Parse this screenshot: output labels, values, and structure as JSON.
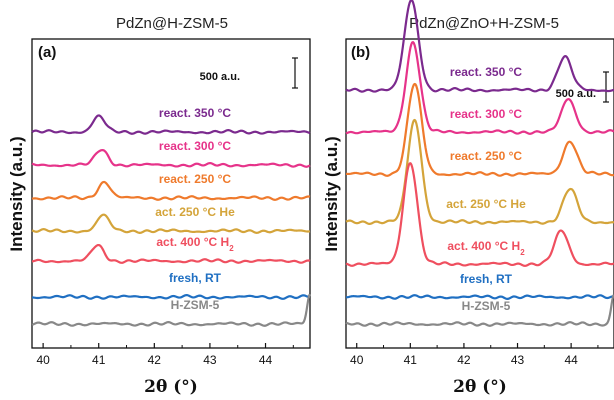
{
  "chart_data": [
    {
      "type": "line",
      "panel_label": "(a)",
      "title": "PdZn@H-ZSM-5",
      "xlabel": "2θ (°)",
      "ylabel": "Intensity (a.u.)",
      "xlim": [
        39.8,
        44.8
      ],
      "x_ticks": [
        40,
        41,
        42,
        43,
        44
      ],
      "scale_bar": "500 a.u.",
      "scale_bar_value": 500,
      "series": [
        {
          "name": "react. 350 °C",
          "color": "#7b2a8e",
          "offset": 3600,
          "peaks": [
            {
              "x": 41.0,
              "h": 260,
              "w": 0.11
            }
          ]
        },
        {
          "name": "react. 300 °C",
          "color": "#e6338a",
          "offset": 3050,
          "peaks": [
            {
              "x": 41.05,
              "h": 260,
              "w": 0.11
            }
          ]
        },
        {
          "name": "react. 250 °C",
          "color": "#ef7a2c",
          "offset": 2500,
          "peaks": [
            {
              "x": 41.1,
              "h": 270,
              "w": 0.11
            }
          ]
        },
        {
          "name": "act. 250 °C He",
          "color": "#d4a43a",
          "offset": 1950,
          "peaks": [
            {
              "x": 41.08,
              "h": 260,
              "w": 0.11
            }
          ]
        },
        {
          "name": "act. 400 °C H",
          "name_sub": "2",
          "color": "#ef4f5f",
          "offset": 1450,
          "peaks": [
            {
              "x": 40.98,
              "h": 260,
              "w": 0.11
            }
          ]
        },
        {
          "name": "fresh, RT",
          "color": "#1f6fc2",
          "offset": 850,
          "peaks": []
        },
        {
          "name": "H-ZSM-5",
          "color": "#888888",
          "offset": 400,
          "peaks": [
            {
              "x": 44.8,
              "h": 500,
              "w": 0.05
            }
          ]
        }
      ]
    },
    {
      "type": "line",
      "panel_label": "(b)",
      "title": "PdZn@ZnO+H-ZSM-5",
      "xlabel": "2θ (°)",
      "ylabel": "Intensity (a.u.)",
      "xlim": [
        39.8,
        44.8
      ],
      "x_ticks": [
        40,
        41,
        42,
        43,
        44
      ],
      "scale_bar": "500 a.u.",
      "scale_bar_value": 500,
      "series": [
        {
          "name": "react. 350 °C",
          "color": "#7b2a8e",
          "offset": 4300,
          "peaks": [
            {
              "x": 41.02,
              "h": 1500,
              "w": 0.13
            },
            {
              "x": 43.88,
              "h": 550,
              "w": 0.13
            }
          ]
        },
        {
          "name": "react. 300 °C",
          "color": "#e6338a",
          "offset": 3600,
          "peaks": [
            {
              "x": 41.05,
              "h": 1500,
              "w": 0.13
            },
            {
              "x": 43.95,
              "h": 550,
              "w": 0.13
            }
          ]
        },
        {
          "name": "react. 250 °C",
          "color": "#ef7a2c",
          "offset": 2900,
          "peaks": [
            {
              "x": 41.08,
              "h": 1500,
              "w": 0.13
            },
            {
              "x": 43.98,
              "h": 550,
              "w": 0.13
            }
          ]
        },
        {
          "name": "act. 250 °C He",
          "color": "#d4a43a",
          "offset": 2100,
          "peaks": [
            {
              "x": 41.08,
              "h": 1700,
              "w": 0.13
            },
            {
              "x": 43.98,
              "h": 550,
              "w": 0.13
            }
          ]
        },
        {
          "name": "act. 400 °C H",
          "name_sub": "2",
          "color": "#ef4f5f",
          "offset": 1400,
          "peaks": [
            {
              "x": 41.0,
              "h": 1700,
              "w": 0.13
            },
            {
              "x": 43.82,
              "h": 550,
              "w": 0.13
            }
          ]
        },
        {
          "name": "fresh, RT",
          "color": "#1f6fc2",
          "offset": 850,
          "peaks": []
        },
        {
          "name": "H-ZSM-5",
          "color": "#888888",
          "offset": 400,
          "peaks": [
            {
              "x": 44.8,
              "h": 500,
              "w": 0.05
            }
          ]
        }
      ]
    }
  ]
}
